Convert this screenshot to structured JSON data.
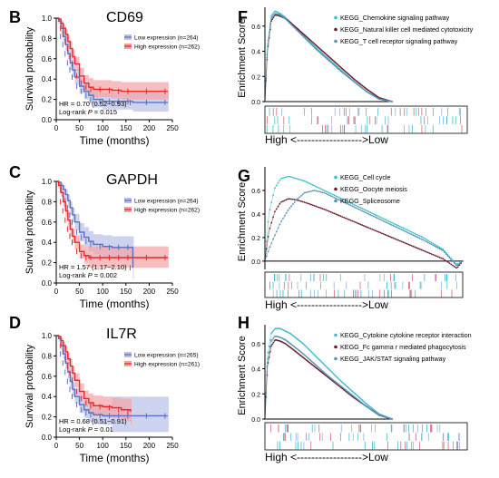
{
  "colors": {
    "low": "#5b6fc4",
    "low_band": "#b8c0e8",
    "high": "#e8262c",
    "high_band": "#f3a3a5",
    "cyan": "#3fbccc",
    "dark": "#6b1a2a",
    "steel": "#5a93b5",
    "axis": "#000000",
    "bar_blue": "#8fb3d9",
    "bar_red": "#d0697b"
  },
  "chart_data": [
    {
      "type": "line",
      "panel": "B",
      "title": "CD69",
      "xlabel": "Time (months)",
      "ylabel": "Survival probability",
      "xlim": [
        0,
        250
      ],
      "ylim": [
        0,
        1.0
      ],
      "xticks": [
        "0",
        "50",
        "100",
        "150",
        "200",
        "250"
      ],
      "yticks": [
        "0.0",
        "0.2",
        "0.4",
        "0.6",
        "0.8",
        "1.0"
      ],
      "legend_position": "top-right",
      "series": [
        {
          "name": "Low expression (n=264)",
          "color_key": "low",
          "x": [
            0,
            5,
            10,
            15,
            20,
            25,
            30,
            35,
            40,
            50,
            60,
            70,
            80,
            100,
            120,
            140,
            160,
            165,
            200,
            240
          ],
          "y": [
            1.0,
            0.97,
            0.9,
            0.82,
            0.74,
            0.65,
            0.56,
            0.49,
            0.42,
            0.33,
            0.28,
            0.24,
            0.2,
            0.18,
            0.18,
            0.18,
            0.18,
            0.17,
            0.17,
            0.17
          ],
          "ci_upper": [
            1.0,
            1.0,
            0.94,
            0.87,
            0.8,
            0.71,
            0.63,
            0.56,
            0.5,
            0.41,
            0.36,
            0.32,
            0.29,
            0.27,
            0.27,
            0.27,
            0.27,
            0.27,
            0.27,
            0.27
          ],
          "ci_lower": [
            1.0,
            0.94,
            0.86,
            0.77,
            0.68,
            0.59,
            0.49,
            0.42,
            0.35,
            0.26,
            0.2,
            0.16,
            0.12,
            0.1,
            0.1,
            0.1,
            0.1,
            0.08,
            0.08,
            0.08
          ]
        },
        {
          "name": "High expression (n=262)",
          "color_key": "high",
          "x": [
            0,
            5,
            10,
            15,
            20,
            25,
            30,
            35,
            40,
            50,
            60,
            70,
            80,
            100,
            120,
            140,
            160,
            200,
            240
          ],
          "y": [
            1.0,
            0.99,
            0.95,
            0.9,
            0.84,
            0.77,
            0.7,
            0.62,
            0.55,
            0.43,
            0.36,
            0.32,
            0.3,
            0.3,
            0.29,
            0.28,
            0.28,
            0.28,
            0.28
          ],
          "ci_upper": [
            1.0,
            1.0,
            0.98,
            0.94,
            0.89,
            0.83,
            0.77,
            0.69,
            0.62,
            0.51,
            0.44,
            0.41,
            0.39,
            0.39,
            0.38,
            0.37,
            0.37,
            0.37,
            0.37
          ],
          "ci_lower": [
            1.0,
            0.97,
            0.91,
            0.85,
            0.78,
            0.71,
            0.63,
            0.55,
            0.48,
            0.36,
            0.29,
            0.24,
            0.22,
            0.22,
            0.21,
            0.2,
            0.2,
            0.2,
            0.2
          ]
        }
      ],
      "annotation_hr": "HR = 0.70 (0.52−0.93)",
      "annotation_p_prefix": "Log-rank ",
      "annotation_p_italic": "P",
      "annotation_p_value": " = 0.015"
    },
    {
      "type": "line",
      "panel": "C",
      "title": "GAPDH",
      "xlabel": "Time (months)",
      "ylabel": "Survival probability",
      "xlim": [
        0,
        250
      ],
      "ylim": [
        0,
        1.0
      ],
      "xticks": [
        "0",
        "50",
        "100",
        "150",
        "200",
        "250"
      ],
      "yticks": [
        "0.0",
        "0.2",
        "0.4",
        "0.6",
        "0.8",
        "1.0"
      ],
      "legend_position": "top-right",
      "series": [
        {
          "name": "Low expression (n=264)",
          "color_key": "low",
          "x": [
            0,
            5,
            10,
            15,
            20,
            25,
            30,
            35,
            40,
            50,
            60,
            70,
            80,
            100,
            120,
            140,
            160,
            165
          ],
          "y": [
            1.0,
            0.99,
            0.96,
            0.92,
            0.87,
            0.81,
            0.74,
            0.67,
            0.6,
            0.5,
            0.45,
            0.41,
            0.38,
            0.36,
            0.35,
            0.35,
            0.35,
            0.15
          ],
          "ci_upper": [
            1.0,
            1.0,
            0.99,
            0.96,
            0.92,
            0.87,
            0.8,
            0.74,
            0.68,
            0.59,
            0.55,
            0.51,
            0.48,
            0.47,
            0.46,
            0.46,
            0.46,
            0.46
          ],
          "ci_lower": [
            1.0,
            0.97,
            0.92,
            0.87,
            0.81,
            0.74,
            0.67,
            0.6,
            0.52,
            0.41,
            0.36,
            0.31,
            0.28,
            0.25,
            0.24,
            0.24,
            0.24,
            0.04
          ]
        },
        {
          "name": "High expression (n=262)",
          "color_key": "high",
          "x": [
            0,
            5,
            10,
            15,
            20,
            25,
            30,
            35,
            40,
            50,
            60,
            70,
            80,
            100,
            120,
            140,
            160,
            200,
            240
          ],
          "y": [
            1.0,
            0.96,
            0.89,
            0.8,
            0.71,
            0.62,
            0.53,
            0.46,
            0.4,
            0.31,
            0.27,
            0.25,
            0.25,
            0.25,
            0.25,
            0.25,
            0.25,
            0.25,
            0.25
          ],
          "ci_upper": [
            1.0,
            0.99,
            0.93,
            0.86,
            0.77,
            0.69,
            0.6,
            0.53,
            0.47,
            0.38,
            0.36,
            0.36,
            0.36,
            0.36,
            0.36,
            0.36,
            0.36,
            0.36,
            0.36
          ],
          "ci_lower": [
            1.0,
            0.93,
            0.85,
            0.75,
            0.65,
            0.55,
            0.46,
            0.39,
            0.33,
            0.24,
            0.19,
            0.15,
            0.15,
            0.15,
            0.15,
            0.15,
            0.15,
            0.15,
            0.15
          ]
        }
      ],
      "annotation_hr": "HR = 1.57 (1.17−2.10)",
      "annotation_p_prefix": "Log-rank ",
      "annotation_p_italic": "P",
      "annotation_p_value": " = 0.002"
    },
    {
      "type": "line",
      "panel": "D",
      "title": "IL7R",
      "xlabel": "Time (months)",
      "ylabel": "Survival probability",
      "xlim": [
        0,
        250
      ],
      "ylim": [
        0,
        1.0
      ],
      "xticks": [
        "0",
        "50",
        "100",
        "150",
        "200",
        "250"
      ],
      "yticks": [
        "0.0",
        "0.2",
        "0.4",
        "0.6",
        "0.8",
        "1.0"
      ],
      "legend_position": "top-right",
      "series": [
        {
          "name": "Low expression (n=265)",
          "color_key": "low",
          "x": [
            0,
            5,
            10,
            15,
            20,
            25,
            30,
            35,
            40,
            50,
            60,
            70,
            80,
            100,
            120,
            140,
            160,
            200,
            240
          ],
          "y": [
            1.0,
            0.97,
            0.9,
            0.82,
            0.73,
            0.64,
            0.55,
            0.47,
            0.4,
            0.32,
            0.27,
            0.24,
            0.22,
            0.21,
            0.21,
            0.21,
            0.21,
            0.21,
            0.21
          ],
          "ci_upper": [
            1.0,
            1.0,
            0.94,
            0.87,
            0.79,
            0.7,
            0.62,
            0.54,
            0.48,
            0.4,
            0.36,
            0.34,
            0.32,
            0.32,
            0.4,
            0.4,
            0.4,
            0.4,
            0.4
          ],
          "ci_lower": [
            1.0,
            0.94,
            0.86,
            0.77,
            0.67,
            0.58,
            0.48,
            0.4,
            0.33,
            0.24,
            0.19,
            0.15,
            0.13,
            0.12,
            0.05,
            0.05,
            0.05,
            0.05,
            0.05
          ]
        },
        {
          "name": "High expression (n=261)",
          "color_key": "high",
          "x": [
            0,
            5,
            10,
            15,
            20,
            25,
            30,
            35,
            40,
            50,
            60,
            70,
            80,
            100,
            120,
            140,
            160
          ],
          "y": [
            1.0,
            0.99,
            0.95,
            0.9,
            0.84,
            0.77,
            0.7,
            0.63,
            0.56,
            0.45,
            0.38,
            0.34,
            0.31,
            0.3,
            0.29,
            0.27,
            0.25
          ],
          "ci_upper": [
            1.0,
            1.0,
            0.98,
            0.94,
            0.89,
            0.83,
            0.77,
            0.7,
            0.63,
            0.53,
            0.46,
            0.43,
            0.41,
            0.4,
            0.39,
            0.38,
            0.38
          ],
          "ci_lower": [
            1.0,
            0.97,
            0.91,
            0.85,
            0.78,
            0.71,
            0.63,
            0.56,
            0.49,
            0.38,
            0.3,
            0.25,
            0.21,
            0.2,
            0.19,
            0.16,
            0.12
          ]
        }
      ],
      "annotation_hr": "HR = 0.68 (0.51−0.91)",
      "annotation_p_prefix": "Log-rank ",
      "annotation_p_italic": "P",
      "annotation_p_value": " = 0.01"
    },
    {
      "type": "line",
      "panel": "F",
      "ylabel": "Enrichment Score",
      "xlabel": "High <------------------>Low",
      "ylim": [
        0.0,
        0.75
      ],
      "yticks": [
        "0.0",
        "0.2",
        "0.4",
        "0.6"
      ],
      "legend_position": "top-right",
      "series": [
        {
          "name": "KEGG_Chemokine signaling pathway",
          "color_key": "cyan",
          "x": [
            0,
            0.02,
            0.05,
            0.08,
            0.12,
            0.16,
            0.2,
            0.3,
            0.4,
            0.5,
            0.6,
            0.7,
            0.8,
            0.9,
            1.0
          ],
          "y": [
            0,
            0.45,
            0.68,
            0.72,
            0.7,
            0.67,
            0.63,
            0.53,
            0.43,
            0.34,
            0.25,
            0.16,
            0.08,
            0.02,
            0.0
          ]
        },
        {
          "name": "KEGG_Natural killer cell mediated cytotoxicity",
          "color_key": "dark",
          "x": [
            0,
            0.02,
            0.05,
            0.08,
            0.12,
            0.16,
            0.2,
            0.3,
            0.4,
            0.5,
            0.6,
            0.7,
            0.8,
            0.9,
            1.0
          ],
          "y": [
            0,
            0.4,
            0.64,
            0.69,
            0.68,
            0.66,
            0.63,
            0.54,
            0.45,
            0.36,
            0.27,
            0.18,
            0.1,
            0.03,
            0.0
          ]
        },
        {
          "name": "KEGG_T cell receptor signaling pathway",
          "color_key": "steel",
          "x": [
            0,
            0.02,
            0.05,
            0.08,
            0.12,
            0.16,
            0.2,
            0.3,
            0.4,
            0.5,
            0.6,
            0.7,
            0.8,
            0.9,
            1.0
          ],
          "y": [
            0,
            0.42,
            0.66,
            0.7,
            0.69,
            0.66,
            0.62,
            0.52,
            0.42,
            0.33,
            0.24,
            0.16,
            0.08,
            0.02,
            0.0
          ]
        }
      ]
    },
    {
      "type": "line",
      "panel": "G",
      "ylabel": "Enrichment Score",
      "xlabel": "High <------------------>Low",
      "ylim": [
        -0.07,
        0.8
      ],
      "yticks": [
        "0.0",
        "0.2",
        "0.4",
        "0.6"
      ],
      "legend_position": "top-right",
      "series": [
        {
          "name": "KEGG_Cell cycle",
          "color_key": "cyan",
          "x": [
            0,
            0.02,
            0.05,
            0.08,
            0.12,
            0.16,
            0.2,
            0.3,
            0.4,
            0.5,
            0.6,
            0.7,
            0.8,
            0.9,
            0.97,
            1.0
          ],
          "y": [
            0,
            0.4,
            0.62,
            0.7,
            0.72,
            0.7,
            0.68,
            0.6,
            0.52,
            0.44,
            0.36,
            0.28,
            0.2,
            0.1,
            -0.03,
            0.0
          ]
        },
        {
          "name": "KEGG_Oocyte meiosis",
          "color_key": "dark",
          "x": [
            0,
            0.02,
            0.05,
            0.08,
            0.12,
            0.16,
            0.2,
            0.3,
            0.4,
            0.5,
            0.6,
            0.7,
            0.8,
            0.9,
            0.97,
            1.0
          ],
          "y": [
            0,
            0.25,
            0.42,
            0.5,
            0.53,
            0.52,
            0.5,
            0.44,
            0.37,
            0.3,
            0.23,
            0.16,
            0.09,
            0.02,
            -0.06,
            0.0
          ]
        },
        {
          "name": "KEGG_Spliceosome",
          "color_key": "steel",
          "x": [
            0,
            0.02,
            0.05,
            0.08,
            0.12,
            0.16,
            0.2,
            0.25,
            0.3,
            0.4,
            0.5,
            0.6,
            0.7,
            0.8,
            0.9,
            0.97,
            1.0
          ],
          "y": [
            0,
            0.1,
            0.22,
            0.33,
            0.44,
            0.52,
            0.58,
            0.6,
            0.58,
            0.5,
            0.42,
            0.34,
            0.26,
            0.18,
            0.09,
            -0.04,
            0.0
          ]
        }
      ]
    },
    {
      "type": "line",
      "panel": "H",
      "ylabel": "Enrichment Score",
      "xlabel": "High <------------------>Low",
      "ylim": [
        0.0,
        0.75
      ],
      "yticks": [
        "0.0",
        "0.2",
        "0.4",
        "0.6"
      ],
      "legend_position": "top-right",
      "series": [
        {
          "name": "KEGG_Cytokine cytokine receptor interaction",
          "color_key": "cyan",
          "x": [
            0,
            0.02,
            0.05,
            0.08,
            0.12,
            0.16,
            0.2,
            0.3,
            0.4,
            0.5,
            0.6,
            0.7,
            0.8,
            0.9,
            1.0
          ],
          "y": [
            0,
            0.5,
            0.68,
            0.72,
            0.72,
            0.7,
            0.68,
            0.6,
            0.5,
            0.4,
            0.3,
            0.21,
            0.12,
            0.04,
            0.0
          ]
        },
        {
          "name": "KEGG_Fc gamma r mediated phagocytosis",
          "color_key": "dark",
          "x": [
            0,
            0.02,
            0.05,
            0.08,
            0.12,
            0.16,
            0.2,
            0.3,
            0.4,
            0.5,
            0.6,
            0.7,
            0.8,
            0.9,
            1.0
          ],
          "y": [
            0,
            0.42,
            0.58,
            0.63,
            0.62,
            0.6,
            0.57,
            0.49,
            0.41,
            0.33,
            0.25,
            0.17,
            0.1,
            0.03,
            0.0
          ]
        },
        {
          "name": "KEGG_JAK/STAT signaling pathway",
          "color_key": "steel",
          "x": [
            0,
            0.02,
            0.05,
            0.08,
            0.12,
            0.16,
            0.2,
            0.3,
            0.4,
            0.5,
            0.6,
            0.7,
            0.8,
            0.9,
            1.0
          ],
          "y": [
            0,
            0.45,
            0.62,
            0.66,
            0.65,
            0.63,
            0.6,
            0.52,
            0.43,
            0.34,
            0.26,
            0.18,
            0.1,
            0.03,
            0.0
          ]
        }
      ]
    }
  ]
}
